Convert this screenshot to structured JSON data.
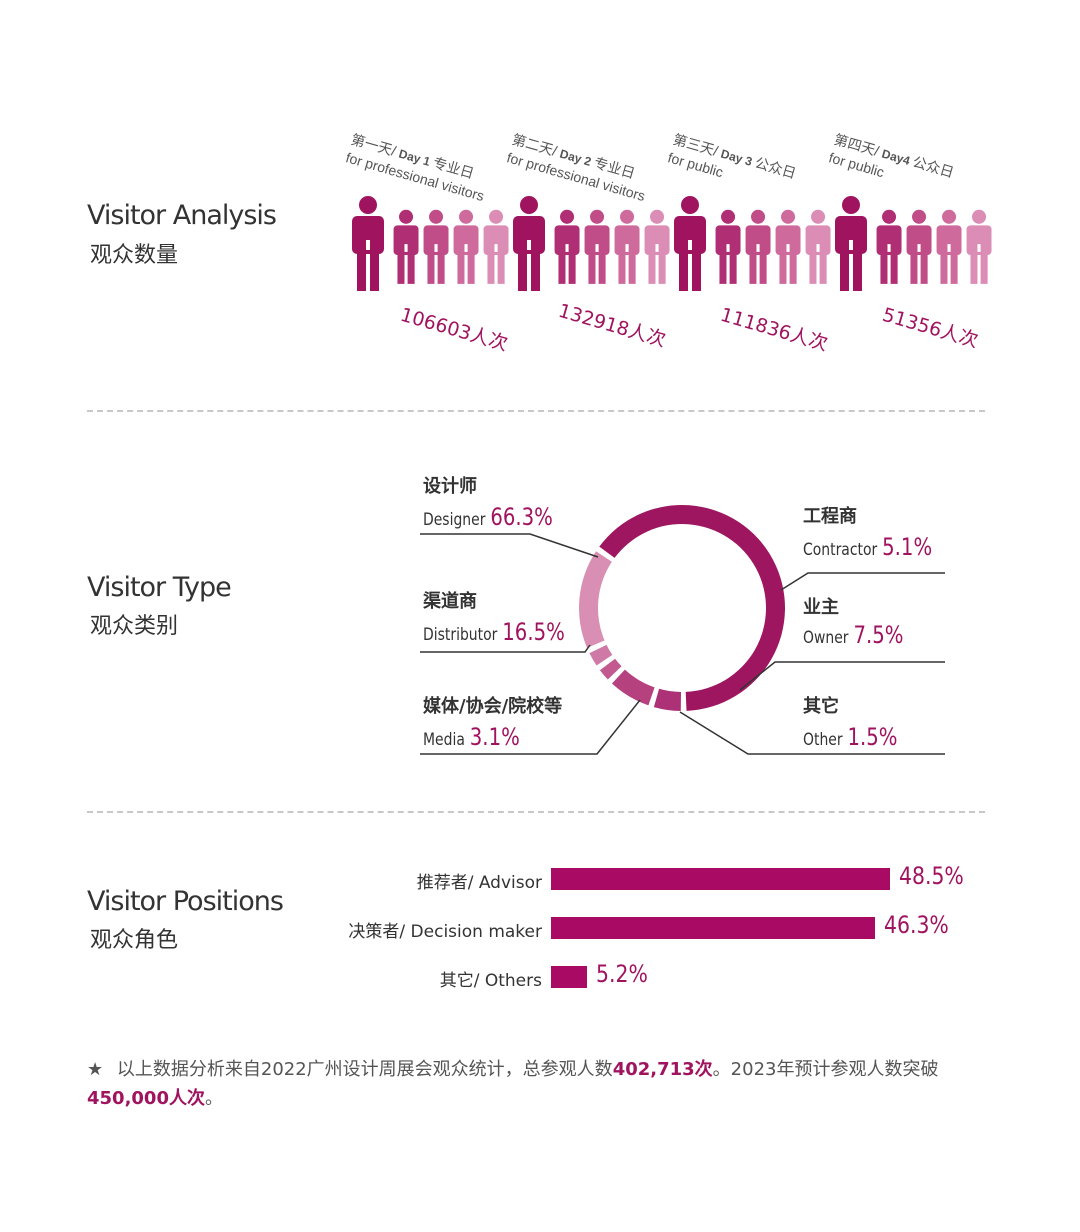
{
  "colors": {
    "accent": "#a0145f",
    "person_shades": [
      "#a0145f",
      "#b02e74",
      "#c04d88",
      "#cf6b9c",
      "#db8db5"
    ],
    "ring": [
      "#9e1660",
      "#ad3176",
      "#b5427f",
      "#c25a90",
      "#cf7aa6",
      "#d98fb4"
    ],
    "bar": "#a80a64"
  },
  "visitor_analysis": {
    "title_en": "Visitor Analysis",
    "title_cn": "观众数量",
    "days": [
      {
        "line1_cn": "第一天/",
        "line1_en": "Day 1",
        "line1_tail": "专业日",
        "line2": "for professional visitors",
        "count": "106603人次"
      },
      {
        "line1_cn": "第二天/",
        "line1_en": "Day 2",
        "line1_tail": "专业日",
        "line2": "for professional visitors",
        "count": "132918人次"
      },
      {
        "line1_cn": "第三天/",
        "line1_en": "Day 3",
        "line1_tail": "公众日",
        "line2": "for public",
        "count": "111836人次"
      },
      {
        "line1_cn": "第四天/",
        "line1_en": "Day4",
        "line1_tail": "公众日",
        "line2": "for public",
        "count": "51356人次"
      }
    ]
  },
  "visitor_type": {
    "title_en": "Visitor Type",
    "title_cn": "观众类别",
    "categories": [
      {
        "cn": "设计师",
        "en": "Designer",
        "pct": "66.3%"
      },
      {
        "cn": "工程商",
        "en": "Contractor",
        "pct": "5.1%"
      },
      {
        "cn": "业主",
        "en": "Owner",
        "pct": "7.5%"
      },
      {
        "cn": "其它",
        "en": "Other",
        "pct": "1.5%"
      },
      {
        "cn": "媒体/协会/院校等",
        "en": "Media",
        "pct": "3.1%"
      },
      {
        "cn": "渠道商",
        "en": "Distributor",
        "pct": "16.5%"
      }
    ]
  },
  "visitor_positions": {
    "title_en": "Visitor Positions",
    "title_cn": "观众角色",
    "rows": [
      {
        "label": "推荐者/ Advisor",
        "pct": "48.5%"
      },
      {
        "label": "决策者/ Decision maker",
        "pct": "46.3%"
      },
      {
        "label": "其它/ Others",
        "pct": "5.2%"
      }
    ]
  },
  "footnote": {
    "star": "★",
    "part1": "以上数据分析来自2022广州设计周展会观众统计，总参观人数",
    "total": "402,713次",
    "part2": "。2023年预计参观人数突破",
    "forecast": "450,000人次",
    "part3": "。"
  },
  "chart_data": [
    {
      "type": "bar",
      "title": "Visitor Analysis",
      "categories": [
        "第一天/ Day 1 专业日",
        "第二天/ Day 2 专业日",
        "第三天/ Day 3 公众日",
        "第四天/ Day4 公众日"
      ],
      "values": [
        106603,
        132918,
        111836,
        51356
      ],
      "unit": "人次"
    },
    {
      "type": "pie",
      "title": "Visitor Type",
      "categories": [
        "Designer",
        "Contractor",
        "Owner",
        "Other",
        "Media",
        "Distributor"
      ],
      "values": [
        66.3,
        5.1,
        7.5,
        1.5,
        3.1,
        16.5
      ],
      "unit": "%"
    },
    {
      "type": "bar",
      "title": "Visitor Positions",
      "categories": [
        "Advisor",
        "Decision maker",
        "Others"
      ],
      "values": [
        48.5,
        46.3,
        5.2
      ],
      "unit": "%"
    }
  ]
}
